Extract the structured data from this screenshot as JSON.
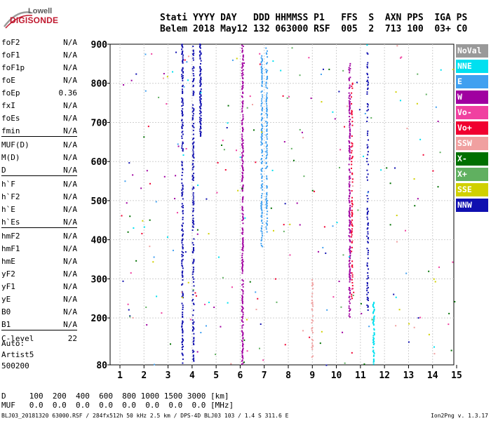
{
  "logo": {
    "line1": "Lowell",
    "line2": "DIGISONDE"
  },
  "header": {
    "line1": "Stati YYYY DAY   DDD HHMMSS P1   FFS  S  AXN PPS  IGA PS",
    "line2": "Belem 2018 May12 132 063000 RSF  005  2  713 100  03+ C0"
  },
  "params": [
    {
      "name": "foF2",
      "value": "N/A"
    },
    {
      "name": "foF1",
      "value": "N/A"
    },
    {
      "name": "foF1p",
      "value": "N/A"
    },
    {
      "name": "foE",
      "value": "N/A"
    },
    {
      "name": "foEp",
      "value": "0.36"
    },
    {
      "name": "fxI",
      "value": "N/A"
    },
    {
      "name": "foEs",
      "value": "N/A"
    },
    {
      "name": "fmin",
      "value": "N/A"
    },
    {
      "name": "MUF(D)",
      "value": "N/A"
    },
    {
      "name": "M(D)",
      "value": "N/A"
    },
    {
      "name": "D",
      "value": "N/A"
    },
    {
      "name": "h`F",
      "value": "N/A"
    },
    {
      "name": "h`F2",
      "value": "N/A"
    },
    {
      "name": "h`E",
      "value": "N/A"
    },
    {
      "name": "h`Es",
      "value": "N/A"
    },
    {
      "name": "hmF2",
      "value": "N/A"
    },
    {
      "name": "hmF1",
      "value": "N/A"
    },
    {
      "name": "hmE",
      "value": "N/A"
    },
    {
      "name": "yF2",
      "value": "N/A"
    },
    {
      "name": "yF1",
      "value": "N/A"
    },
    {
      "name": "yE",
      "value": "N/A"
    },
    {
      "name": "B0",
      "value": "N/A"
    },
    {
      "name": "B1",
      "value": "N/A"
    },
    {
      "name": "C-level",
      "value": "22"
    }
  ],
  "auto": {
    "line1": "Auto:",
    "line2": "Artist5",
    "line3": "500200"
  },
  "legend": [
    {
      "label": "NoVal",
      "color": "#999999"
    },
    {
      "label": "NNE",
      "color": "#00e0f0"
    },
    {
      "label": "E",
      "color": "#40a0f0"
    },
    {
      "label": "W",
      "color": "#a000a0"
    },
    {
      "label": "Vo-",
      "color": "#f040a0"
    },
    {
      "label": "Vo+",
      "color": "#f00030"
    },
    {
      "label": "SSW",
      "color": "#f0a0a0"
    },
    {
      "label": "X-",
      "color": "#007000"
    },
    {
      "label": "X+",
      "color": "#60b060"
    },
    {
      "label": "SSE",
      "color": "#d0d000"
    },
    {
      "label": "NNW",
      "color": "#1010b0"
    }
  ],
  "footer": {
    "d_line": "D     100  200  400  600  800 1000 1500 3000 [km]",
    "muf_line": "MUF   0.0  0.0  0.0  0.0  0.0  0.0  0.0  0.0 [MHz]"
  },
  "source_line": "BLJ03_20181320 63000.RSF / 284fx512h 50 kHz 2.5 km / DPS-4D BLJ03 103 / 1.4 S 311.6 E",
  "version": "Ion2Png v. 1.3.17",
  "chart_data": {
    "type": "scatter",
    "xlim": [
      1,
      15
    ],
    "ylim": [
      80,
      900
    ],
    "x_ticks": [
      1,
      2,
      3,
      4,
      5,
      6,
      7,
      8,
      9,
      10,
      11,
      12,
      13,
      14,
      15
    ],
    "y_ticks": [
      80,
      200,
      300,
      400,
      500,
      600,
      700,
      800,
      900
    ],
    "grid": true,
    "columns": [
      {
        "x": 3.6,
        "y_from": 82,
        "y_to": 900,
        "color": "#1010b0",
        "density": 0.55
      },
      {
        "x": 4.05,
        "y_from": 82,
        "y_to": 900,
        "color": "#1010b0",
        "density": 0.45
      },
      {
        "x": 4.35,
        "y_from": 665,
        "y_to": 900,
        "color": "#1010b0",
        "density": 0.8
      },
      {
        "x": 6.1,
        "y_from": 82,
        "y_to": 900,
        "color": "#a000a0",
        "density": 0.7
      },
      {
        "x": 6.9,
        "y_from": 380,
        "y_to": 870,
        "color": "#40a0f0",
        "density": 0.6
      },
      {
        "x": 7.1,
        "y_from": 420,
        "y_to": 890,
        "color": "#40a0f0",
        "density": 0.55
      },
      {
        "x": 10.55,
        "y_from": 200,
        "y_to": 850,
        "color": "#a000a0",
        "density": 0.7
      },
      {
        "x": 10.65,
        "y_from": 250,
        "y_to": 800,
        "color": "#f00030",
        "density": 0.35
      },
      {
        "x": 11.3,
        "y_from": 220,
        "y_to": 880,
        "color": "#1010b0",
        "density": 0.3
      },
      {
        "x": 11.55,
        "y_from": 82,
        "y_to": 240,
        "color": "#00e0f0",
        "density": 0.8
      },
      {
        "x": 9.0,
        "y_from": 100,
        "y_to": 320,
        "color": "#f0a0a0",
        "density": 0.4
      }
    ]
  }
}
